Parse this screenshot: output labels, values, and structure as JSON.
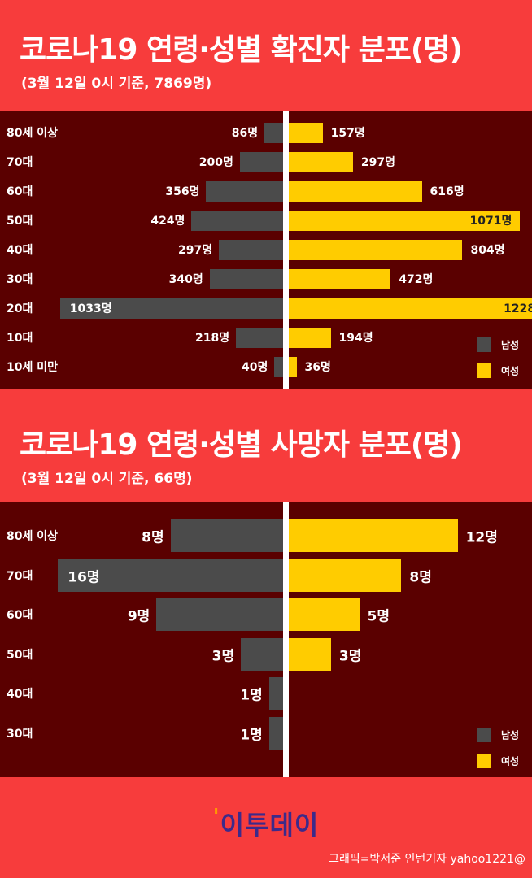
{
  "chart_data": [
    {
      "type": "bar",
      "orientation": "horizontal-butterfly",
      "title": "코로나19 연령·성별 확진자 분포(명)",
      "subtitle": "(3월 12일 0시 기준, 7869명)",
      "categories": [
        "80세 이상",
        "70대",
        "60대",
        "50대",
        "40대",
        "30대",
        "20대",
        "10대",
        "10세 미만"
      ],
      "series": [
        {
          "name": "남성",
          "color": "#4b4b4b",
          "values": [
            86,
            200,
            356,
            424,
            297,
            340,
            1033,
            218,
            40
          ]
        },
        {
          "name": "여성",
          "color": "#ffcc00",
          "values": [
            157,
            297,
            616,
            1071,
            804,
            472,
            1228,
            194,
            36
          ]
        }
      ],
      "unit": "명",
      "legend_position": "bottom-right"
    },
    {
      "type": "bar",
      "orientation": "horizontal-butterfly",
      "title": "코로나19 연령·성별 사망자 분포(명)",
      "subtitle": "(3월 12일 0시 기준, 66명)",
      "categories": [
        "80세 이상",
        "70대",
        "60대",
        "50대",
        "40대",
        "30대"
      ],
      "series": [
        {
          "name": "남성",
          "color": "#4b4b4b",
          "values": [
            8,
            16,
            9,
            3,
            1,
            1
          ]
        },
        {
          "name": "여성",
          "color": "#ffcc00",
          "values": [
            12,
            8,
            5,
            3,
            0,
            0
          ]
        }
      ],
      "unit": "명",
      "legend_position": "bottom-right"
    }
  ],
  "footer": {
    "logo_mark": "'",
    "logo_text": "이투데이",
    "credit": "그래픽=박서준 인턴기자 yahoo1221@"
  }
}
